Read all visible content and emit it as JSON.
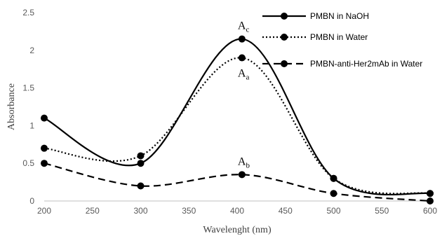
{
  "chart_data": {
    "type": "line",
    "xlabel": "Wavelenght (nm)",
    "ylabel": "Absorbance",
    "xlim": [
      200,
      600
    ],
    "ylim": [
      0,
      2.5
    ],
    "xticks": [
      "200",
      "250",
      "300",
      "350",
      "400",
      "450",
      "500",
      "550",
      "600"
    ],
    "yticks": [
      "0",
      "0.5",
      "1",
      "1.5",
      "2",
      "2.5"
    ],
    "grid": false,
    "legend_position": "top-right",
    "series": [
      {
        "name": "PMBN in NaOH",
        "style": "solid",
        "color": "#000000",
        "x": [
          200,
          300,
          405,
          500,
          600
        ],
        "y": [
          1.1,
          0.5,
          2.15,
          0.3,
          0.1
        ]
      },
      {
        "name": "PMBN in Water",
        "style": "dotted",
        "color": "#000000",
        "x": [
          200,
          300,
          405,
          500,
          600
        ],
        "y": [
          0.7,
          0.6,
          1.9,
          0.3,
          0.1
        ]
      },
      {
        "name": "PMBN-anti-Her2mAb  in Water",
        "style": "dashed",
        "color": "#000000",
        "x": [
          200,
          300,
          405,
          500,
          600
        ],
        "y": [
          0.5,
          0.2,
          0.35,
          0.1,
          0.0
        ]
      }
    ],
    "annotations": [
      {
        "main": "A",
        "sub": "c",
        "x": 405,
        "y": 2.15,
        "placement": "above"
      },
      {
        "main": "A",
        "sub": "a",
        "x": 405,
        "y": 1.9,
        "placement": "below"
      },
      {
        "main": "A",
        "sub": "b",
        "x": 405,
        "y": 0.35,
        "placement": "above"
      }
    ]
  }
}
